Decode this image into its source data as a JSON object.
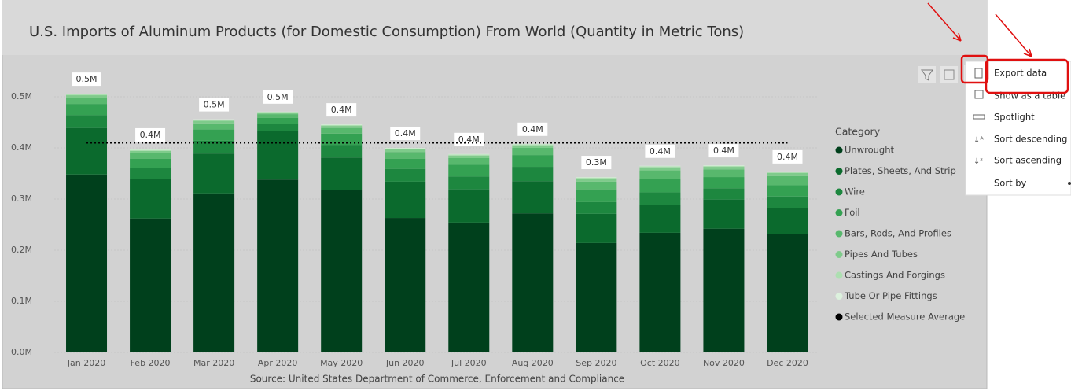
{
  "chart_data": {
    "type": "stacked_bar",
    "title": "U.S. Imports of Aluminum Products (for Domestic Consumption) From World  (Quantity in Metric Tons)",
    "source": "Source: United States Department of Commerce, Enforcement and Compliance",
    "legend_title": "Category",
    "categories": [
      "Jan 2020",
      "Feb 2020",
      "Mar 2020",
      "Apr 2020",
      "May 2020",
      "Jun 2020",
      "Jul 2020",
      "Aug 2020",
      "Sep 2020",
      "Oct 2020",
      "Nov 2020",
      "Dec 2020"
    ],
    "series": [
      {
        "name": "Unwrought",
        "color": "#00401c",
        "values": [
          348000,
          262000,
          311000,
          338000,
          318000,
          263000,
          254000,
          272000,
          214000,
          234000,
          242000,
          231000
        ]
      },
      {
        "name": "Plates, Sheets, And Strip",
        "color": "#0b6a2d",
        "values": [
          91000,
          77000,
          78000,
          95000,
          63000,
          71000,
          65000,
          63000,
          57000,
          54000,
          57000,
          52000
        ]
      },
      {
        "name": "Wire",
        "color": "#1d873f",
        "values": [
          25000,
          22000,
          25000,
          14000,
          25000,
          25000,
          25000,
          28000,
          23000,
          25000,
          22000,
          22000
        ]
      },
      {
        "name": "Foil",
        "color": "#34a152",
        "values": [
          22000,
          18000,
          22000,
          12000,
          22000,
          20000,
          23000,
          23000,
          25000,
          26000,
          22000,
          22000
        ]
      },
      {
        "name": "Bars, Rods, And Profiles",
        "color": "#58b86d",
        "values": [
          12000,
          11000,
          12000,
          7000,
          11000,
          13000,
          13000,
          14000,
          15000,
          17000,
          15000,
          18000
        ]
      },
      {
        "name": "Pipes And Tubes",
        "color": "#7fcb8b",
        "values": [
          5000,
          4000,
          5000,
          3000,
          4000,
          5000,
          5000,
          5000,
          6000,
          6000,
          5000,
          6000
        ]
      },
      {
        "name": "Castings And Forgings",
        "color": "#addfb1",
        "values": [
          2000,
          2000,
          2000,
          1500,
          2000,
          2000,
          2000,
          2000,
          2000,
          2000,
          2000,
          2000
        ]
      },
      {
        "name": "Tube Or Pipe Fittings",
        "color": "#dcf1dd",
        "values": [
          1000,
          1000,
          1000,
          500,
          1000,
          1000,
          1000,
          1000,
          1000,
          1000,
          1000,
          1000
        ]
      }
    ],
    "total_labels": [
      "0.5M",
      "0.4M",
      "0.5M",
      "0.5M",
      "0.4M",
      "0.4M",
      "0.4M",
      "0.4M",
      "0.3M",
      "0.4M",
      "0.4M",
      "0.4M"
    ],
    "average": {
      "name": "Selected Measure Average",
      "color": "#000000",
      "value": 410000
    },
    "ylim": [
      0,
      550000
    ],
    "yticks": [
      {
        "value": 0,
        "label": "0.0M"
      },
      {
        "value": 100000,
        "label": "0.1M"
      },
      {
        "value": 200000,
        "label": "0.2M"
      },
      {
        "value": 300000,
        "label": "0.3M"
      },
      {
        "value": 400000,
        "label": "0.4M"
      },
      {
        "value": 500000,
        "label": "0.5M"
      }
    ],
    "grid": true
  },
  "menu": {
    "items": [
      "Export data",
      "Show as a table",
      "Spotlight",
      "Sort descending",
      "Sort ascending",
      "Sort by"
    ]
  }
}
